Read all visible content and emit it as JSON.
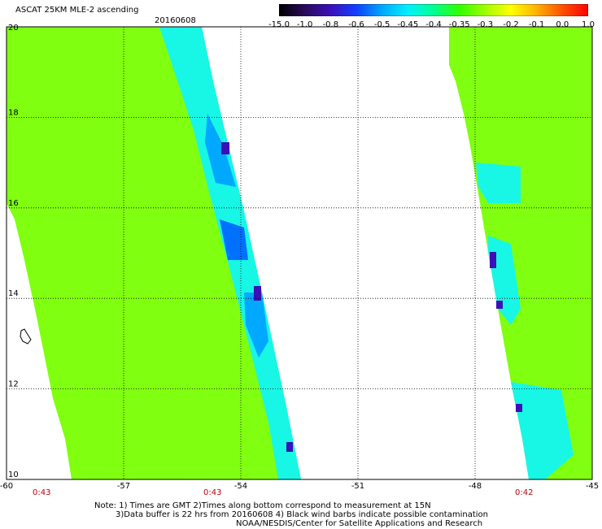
{
  "header": {
    "title": "ASCAT 25KM MLE-2 ascending",
    "date": "20160608"
  },
  "colorbar": {
    "labels": [
      "-15.0",
      "-1.0",
      "-0.8",
      "-0.6",
      "-0.5",
      "-0.45",
      "-0.4",
      "-0.35",
      "-0.3",
      "-0.2",
      "-0.1",
      "0.0",
      "1.0"
    ],
    "colors": [
      "#000000",
      "#2a0a5a",
      "#3a10b8",
      "#1040ff",
      "#00a8ff",
      "#00f0ff",
      "#00ff90",
      "#30ff00",
      "#a0ff00",
      "#ffff00",
      "#ffb000",
      "#ff5000",
      "#ff0000"
    ]
  },
  "map": {
    "lat_labels": [
      "20",
      "18",
      "16",
      "14",
      "12",
      "10"
    ],
    "lon_labels": [
      "-60",
      "-57",
      "-54",
      "-51",
      "-48",
      "-45"
    ],
    "lat_range": [
      10,
      20
    ],
    "lon_range": [
      -60,
      -45
    ],
    "gridlines": "dotted",
    "field_color": "#80ff10"
  },
  "times": [
    "0:43",
    "0:43",
    "0:42"
  ],
  "note": {
    "line1": "Note: 1) Times are GMT 2)Times along bottom correspond to measurement at 15N",
    "line2": "3)Data buffer is 22 hrs from 20160608 4) Black wind barbs indicate possible contamination",
    "line3": "NOAA/NESDIS/Center for Satellite Applications and Research"
  }
}
